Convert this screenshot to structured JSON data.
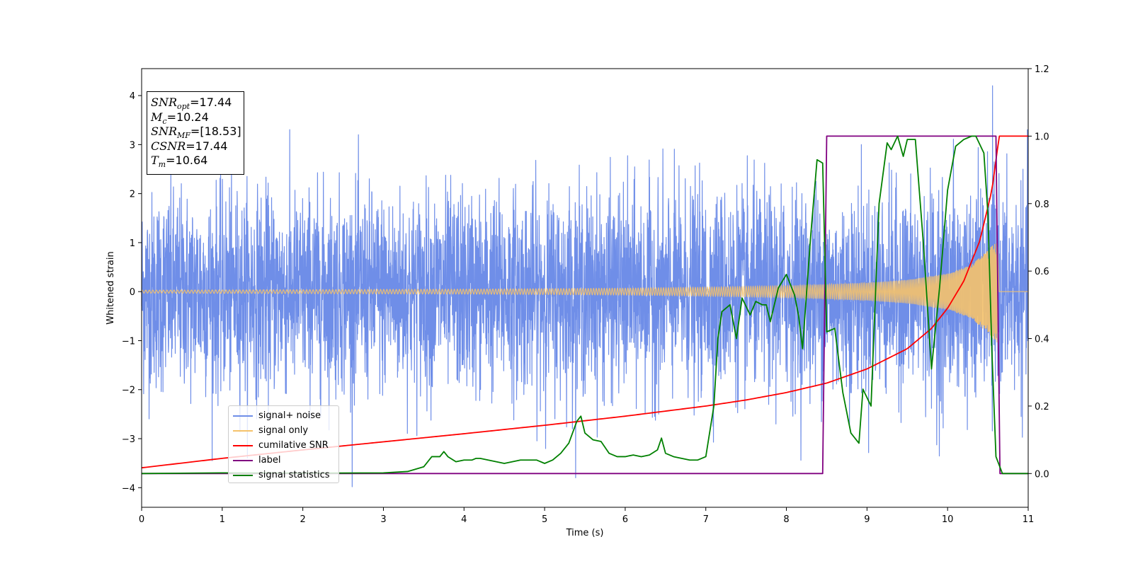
{
  "chart_data": {
    "type": "line",
    "xlabel": "Time (s)",
    "ylabel": "Whitened strain",
    "xlim": [
      0,
      11
    ],
    "ylim": [
      -4.4,
      4.55
    ],
    "y2lim": [
      -0.1,
      1.2
    ],
    "x_ticks": [
      "0",
      "1",
      "2",
      "3",
      "4",
      "5",
      "6",
      "7",
      "8",
      "9",
      "10",
      "11"
    ],
    "y_ticks": [
      "−4",
      "−3",
      "−2",
      "−1",
      "0",
      "1",
      "2",
      "3",
      "4"
    ],
    "y2_ticks": [
      "0.0",
      "0.2",
      "0.4",
      "0.6",
      "0.8",
      "1.0",
      "1.2"
    ],
    "info_box": {
      "snr_opt": "=17.44",
      "mc": "=10.24",
      "snr_mf": "=[18.53]",
      "csnr": "=17.44",
      "tm": "=10.64"
    },
    "series": [
      {
        "name": "signal+ noise",
        "color": "#6f8ee8",
        "axis": "left",
        "description_values": "whitened noise with std ~1, amplitude range roughly -4.0 to 4.2 across 0 to 11 s, plus the chirp signal"
      },
      {
        "name": "signal only",
        "color": "#f5c26b",
        "axis": "left",
        "envelope": {
          "x": [
            0,
            2,
            4,
            6,
            7,
            8,
            9,
            9.5,
            10,
            10.3,
            10.5,
            10.62,
            10.64,
            11
          ],
          "y": [
            0.03,
            0.04,
            0.05,
            0.07,
            0.09,
            0.12,
            0.18,
            0.24,
            0.37,
            0.55,
            0.85,
            1.05,
            0,
            0
          ]
        }
      },
      {
        "name": "cumilative SNR",
        "color": "#ff0000",
        "axis": "right",
        "x": [
          0,
          1,
          2,
          3,
          4,
          5,
          6,
          7,
          7.5,
          8,
          8.5,
          9,
          9.5,
          9.8,
          10,
          10.2,
          10.4,
          10.55,
          10.64,
          11
        ],
        "y": [
          0.017,
          0.045,
          0.07,
          0.094,
          0.118,
          0.143,
          0.17,
          0.2,
          0.218,
          0.24,
          0.268,
          0.31,
          0.37,
          0.43,
          0.49,
          0.57,
          0.69,
          0.84,
          1.0,
          1.0
        ]
      },
      {
        "name": "label",
        "color": "#800080",
        "axis": "right",
        "x": [
          0,
          8.45,
          8.5,
          10.6,
          10.65,
          11
        ],
        "y": [
          0,
          0,
          1,
          1,
          0,
          0
        ]
      },
      {
        "name": "signal statistics",
        "color": "#008000",
        "axis": "right",
        "x": [
          0,
          1,
          2,
          3,
          3.3,
          3.5,
          3.6,
          3.7,
          3.75,
          3.8,
          3.9,
          4.0,
          4.1,
          4.15,
          4.2,
          4.3,
          4.5,
          4.7,
          4.9,
          5.0,
          5.1,
          5.2,
          5.3,
          5.4,
          5.45,
          5.5,
          5.6,
          5.7,
          5.8,
          5.9,
          6.0,
          6.1,
          6.2,
          6.3,
          6.4,
          6.45,
          6.5,
          6.6,
          6.8,
          6.9,
          7.0,
          7.1,
          7.15,
          7.2,
          7.3,
          7.38,
          7.45,
          7.55,
          7.62,
          7.7,
          7.75,
          7.8,
          7.9,
          8.0,
          8.1,
          8.15,
          8.2,
          8.3,
          8.38,
          8.45,
          8.5,
          8.6,
          8.7,
          8.8,
          8.9,
          8.95,
          9.05,
          9.15,
          9.25,
          9.3,
          9.38,
          9.45,
          9.5,
          9.6,
          9.7,
          9.8,
          9.9,
          10.0,
          10.1,
          10.2,
          10.3,
          10.35,
          10.45,
          10.5,
          10.55,
          10.6,
          10.68,
          10.8,
          11
        ],
        "y": [
          0.0,
          0.002,
          0.001,
          0.002,
          0.006,
          0.02,
          0.05,
          0.05,
          0.065,
          0.05,
          0.035,
          0.04,
          0.04,
          0.045,
          0.045,
          0.04,
          0.03,
          0.04,
          0.04,
          0.03,
          0.04,
          0.06,
          0.09,
          0.155,
          0.17,
          0.12,
          0.1,
          0.095,
          0.06,
          0.05,
          0.05,
          0.055,
          0.05,
          0.055,
          0.07,
          0.105,
          0.06,
          0.05,
          0.04,
          0.04,
          0.05,
          0.2,
          0.4,
          0.48,
          0.5,
          0.4,
          0.52,
          0.47,
          0.51,
          0.5,
          0.5,
          0.45,
          0.55,
          0.59,
          0.53,
          0.47,
          0.37,
          0.7,
          0.93,
          0.92,
          0.42,
          0.43,
          0.24,
          0.12,
          0.09,
          0.25,
          0.2,
          0.8,
          0.98,
          0.96,
          1.0,
          0.94,
          0.99,
          0.99,
          0.68,
          0.31,
          0.55,
          0.84,
          0.97,
          0.99,
          1.0,
          1.0,
          0.95,
          0.77,
          0.36,
          0.05,
          0.0,
          0.0,
          0.0
        ]
      }
    ],
    "legend_position": "lower-left",
    "grid": false
  }
}
